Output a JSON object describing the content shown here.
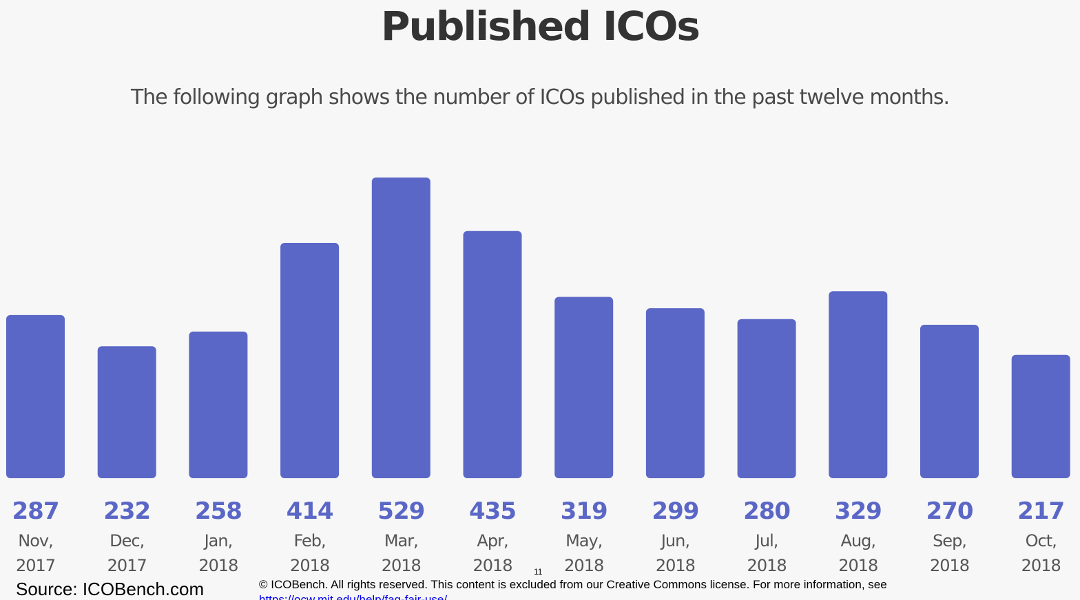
{
  "chart_data": {
    "type": "bar",
    "title": "Published ICOs",
    "subtitle": "The following graph shows the number of ICOs published in the past twelve months.",
    "categories": [
      [
        "Nov,",
        "2017"
      ],
      [
        "Dec,",
        "2017"
      ],
      [
        "Jan,",
        "2018"
      ],
      [
        "Feb,",
        "2018"
      ],
      [
        "Mar,",
        "2018"
      ],
      [
        "Apr,",
        "2018"
      ],
      [
        "May,",
        "2018"
      ],
      [
        "Jun,",
        "2018"
      ],
      [
        "Jul,",
        "2018"
      ],
      [
        "Aug,",
        "2018"
      ],
      [
        "Sep,",
        "2018"
      ],
      [
        "Oct,",
        "2018"
      ]
    ],
    "values": [
      287,
      232,
      258,
      414,
      529,
      435,
      319,
      299,
      280,
      329,
      270,
      217
    ],
    "xlabel": "",
    "ylabel": "",
    "ylim": [
      0,
      529
    ],
    "grid": false,
    "legend": "none",
    "bar_color": "#5a67c6",
    "label_color": "#5a67c6"
  },
  "footer": {
    "source": "Source: ICOBench.com",
    "copyright": "© ICOBench. All rights reserved. This content is excluded from our Creative Commons license. For more information, see",
    "link": "https://ocw.mit.edu/help/faq-fair-use/",
    "page_number": "11"
  }
}
